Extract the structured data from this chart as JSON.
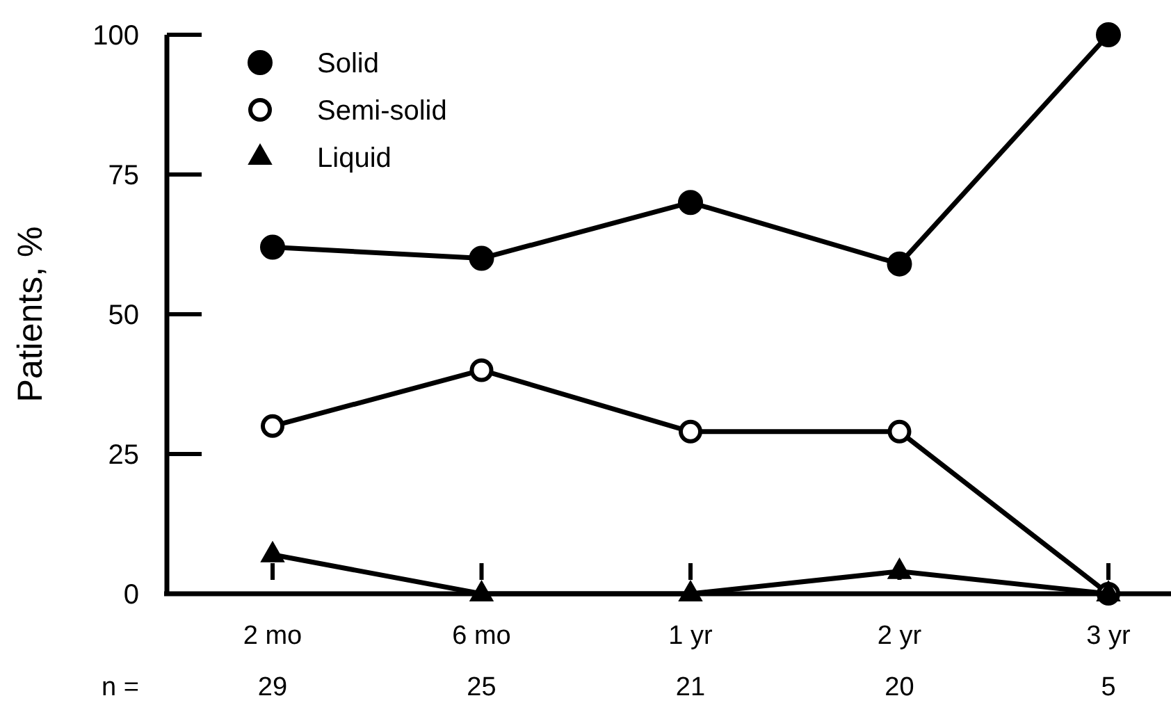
{
  "chart_data": {
    "type": "line",
    "ylabel": "Patients, %",
    "categories": [
      "2 mo",
      "6 mo",
      "1 yr",
      "2 yr",
      "3 yr"
    ],
    "series": [
      {
        "name": "Solid",
        "color": "#000000",
        "marker": "circle",
        "values": [
          62,
          60,
          70,
          59,
          100
        ]
      },
      {
        "name": "Semi-solid",
        "color": "#000000",
        "marker": "circle-open",
        "values": [
          30,
          40,
          29,
          29,
          0
        ]
      },
      {
        "name": "Liquid",
        "color": "#000000",
        "marker": "triangle",
        "values": [
          7,
          0,
          0,
          4,
          0
        ]
      }
    ],
    "ylim": [
      0,
      100
    ],
    "yticks": [
      0,
      25,
      50,
      75,
      100
    ],
    "grid": false,
    "legend": "top left",
    "line_style": "solid",
    "annotations": [
      "n =",
      "29",
      "25",
      "21",
      "20",
      "5"
    ]
  }
}
